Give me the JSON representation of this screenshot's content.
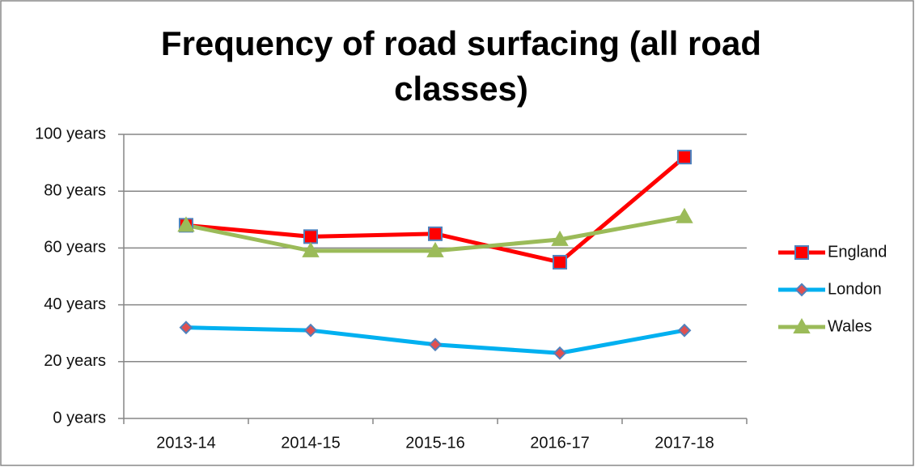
{
  "chart_data": {
    "type": "line",
    "title": "Frequency of road surfacing (all road classes)",
    "categories": [
      "2013-14",
      "2014-15",
      "2015-16",
      "2016-17",
      "2017-18"
    ],
    "series": [
      {
        "name": "England",
        "color": "#ff0000",
        "marker": "square",
        "marker_color": "#ff0000",
        "marker_edge": "#4f81bd",
        "values": [
          68,
          64,
          65,
          55,
          92
        ]
      },
      {
        "name": "London",
        "color": "#00b0f0",
        "marker": "diamond",
        "marker_color": "#e05050",
        "marker_edge": "#4f81bd",
        "values": [
          32,
          31,
          26,
          23,
          31
        ]
      },
      {
        "name": "Wales",
        "color": "#9bbb59",
        "marker": "triangle",
        "marker_color": "#9bbb59",
        "marker_edge": "#9bbb59",
        "values": [
          68,
          59,
          59,
          63,
          71
        ]
      }
    ],
    "ylim": [
      0,
      100
    ],
    "yticks": [
      {
        "value": 0,
        "label": "0 years"
      },
      {
        "value": 20,
        "label": "20 years"
      },
      {
        "value": 40,
        "label": "40 years"
      },
      {
        "value": 60,
        "label": "60 years"
      },
      {
        "value": 80,
        "label": "80 years"
      },
      {
        "value": 100,
        "label": "100 years"
      }
    ],
    "grid": true,
    "legend": "right"
  }
}
